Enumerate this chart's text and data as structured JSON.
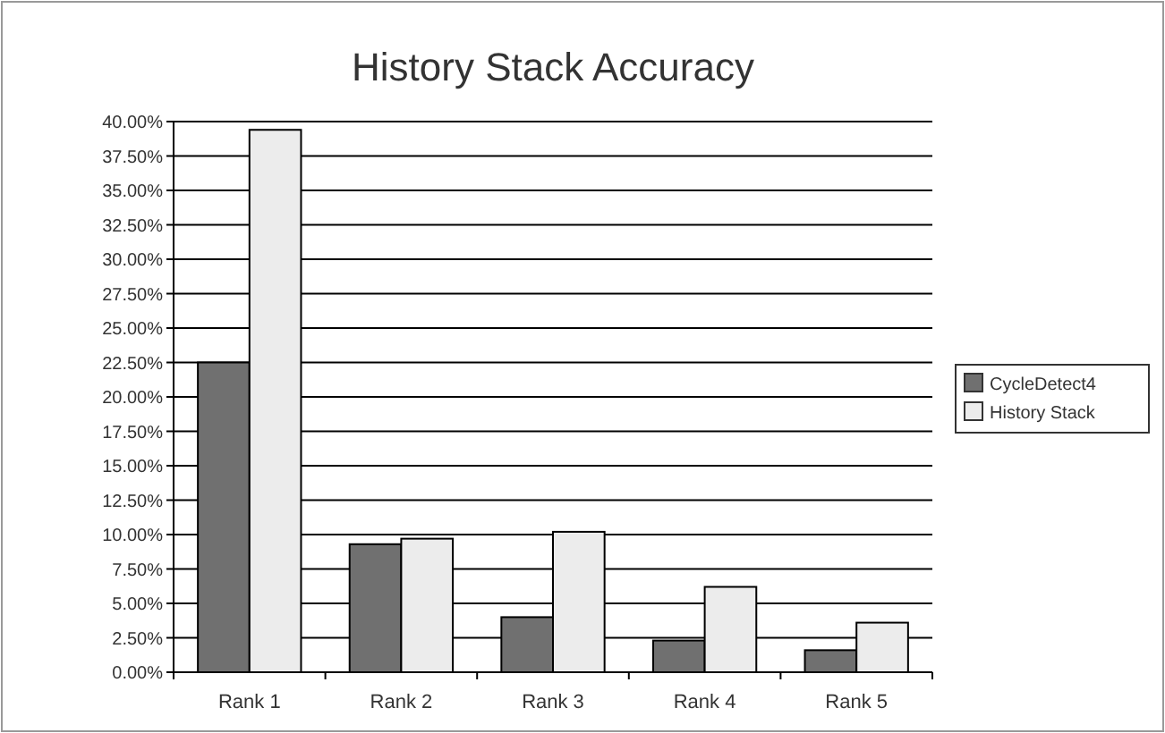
{
  "chart_data": {
    "type": "bar",
    "title": "History Stack Accuracy",
    "categories": [
      "Rank 1",
      "Rank 2",
      "Rank 3",
      "Rank 4",
      "Rank 5"
    ],
    "series": [
      {
        "name": "CycleDetect4",
        "color": "#707070",
        "values": [
          22.5,
          9.3,
          4.0,
          2.3,
          1.6
        ]
      },
      {
        "name": "History Stack",
        "color": "#ececec",
        "values": [
          39.4,
          9.7,
          10.2,
          6.2,
          3.6
        ]
      }
    ],
    "ylim": [
      0,
      40
    ],
    "yticks": [
      {
        "value": 0,
        "label": "0.00%"
      },
      {
        "value": 2.5,
        "label": "2.50%"
      },
      {
        "value": 5,
        "label": "5.00%"
      },
      {
        "value": 7.5,
        "label": "7.50%"
      },
      {
        "value": 10,
        "label": "10.00%"
      },
      {
        "value": 12.5,
        "label": "12.50%"
      },
      {
        "value": 15,
        "label": "15.00%"
      },
      {
        "value": 17.5,
        "label": "17.50%"
      },
      {
        "value": 20,
        "label": "20.00%"
      },
      {
        "value": 22.5,
        "label": "22.50%"
      },
      {
        "value": 25,
        "label": "25.00%"
      },
      {
        "value": 27.5,
        "label": "27.50%"
      },
      {
        "value": 30,
        "label": "30.00%"
      },
      {
        "value": 32.5,
        "label": "32.50%"
      },
      {
        "value": 35,
        "label": "35.00%"
      },
      {
        "value": 37.5,
        "label": "37.50%"
      },
      {
        "value": 40,
        "label": "40.00%"
      }
    ],
    "grid": "y",
    "legend": "right"
  }
}
